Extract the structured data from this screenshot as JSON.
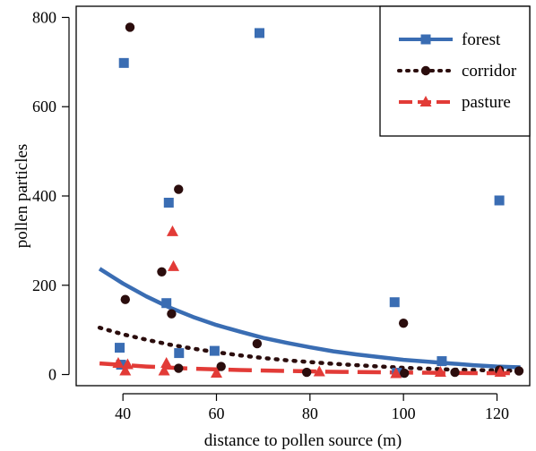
{
  "chart_data": {
    "type": "scatter",
    "xlabel": "distance to pollen source (m)",
    "ylabel": "pollen particles",
    "xlim": [
      30,
      127
    ],
    "ylim": [
      -25,
      825
    ],
    "xticks": [
      40,
      60,
      80,
      100,
      120
    ],
    "yticks": [
      0,
      200,
      400,
      600,
      800
    ],
    "grid": false,
    "legend_position": "top-right",
    "series": [
      {
        "name": "forest",
        "color": "#3a6db3",
        "marker": "square",
        "line_style": "solid",
        "points": [
          {
            "x": 39.3,
            "y": 60
          },
          {
            "x": 39.6,
            "y": 22
          },
          {
            "x": 40.2,
            "y": 698
          },
          {
            "x": 49.3,
            "y": 160
          },
          {
            "x": 49.8,
            "y": 385
          },
          {
            "x": 52.0,
            "y": 48
          },
          {
            "x": 59.6,
            "y": 53
          },
          {
            "x": 69.2,
            "y": 765
          },
          {
            "x": 98.1,
            "y": 162
          },
          {
            "x": 98.6,
            "y": 4
          },
          {
            "x": 108.2,
            "y": 30
          },
          {
            "x": 120.5,
            "y": 390
          }
        ],
        "fit": {
          "x": [
            35,
            40,
            45,
            50,
            55,
            60,
            65,
            70,
            75,
            80,
            85,
            90,
            95,
            100,
            105,
            110,
            115,
            120,
            125
          ],
          "y": [
            237,
            204,
            175,
            150,
            129,
            111,
            96,
            82,
            71,
            61,
            52,
            45,
            39,
            33,
            29,
            25,
            21,
            18,
            16
          ]
        }
      },
      {
        "name": "corridor",
        "color": "#2b0d0d",
        "marker": "circle",
        "line_style": "dotted",
        "points": [
          {
            "x": 40.5,
            "y": 168
          },
          {
            "x": 41.5,
            "y": 778
          },
          {
            "x": 48.3,
            "y": 230
          },
          {
            "x": 50.4,
            "y": 136
          },
          {
            "x": 51.9,
            "y": 415
          },
          {
            "x": 51.9,
            "y": 14
          },
          {
            "x": 61.0,
            "y": 18
          },
          {
            "x": 68.7,
            "y": 69
          },
          {
            "x": 79.3,
            "y": 5
          },
          {
            "x": 100.0,
            "y": 115
          },
          {
            "x": 100.2,
            "y": 3
          },
          {
            "x": 111.0,
            "y": 5
          },
          {
            "x": 120.5,
            "y": 10
          },
          {
            "x": 124.7,
            "y": 8
          }
        ],
        "fit": {
          "x": [
            35,
            40,
            45,
            50,
            55,
            60,
            65,
            70,
            75,
            80,
            85,
            90,
            95,
            100,
            105,
            110,
            115,
            120,
            125
          ],
          "y": [
            105,
            90,
            78,
            67,
            58,
            50,
            43,
            37,
            32,
            28,
            24,
            21,
            18,
            15,
            13,
            11,
            10,
            9,
            8
          ]
        }
      },
      {
        "name": "pasture",
        "color": "#e23b37",
        "marker": "triangle",
        "line_style": "dashed",
        "points": [
          {
            "x": 39.0,
            "y": 25
          },
          {
            "x": 40.5,
            "y": 8
          },
          {
            "x": 41.0,
            "y": 22
          },
          {
            "x": 48.8,
            "y": 8
          },
          {
            "x": 49.3,
            "y": 25
          },
          {
            "x": 50.6,
            "y": 320
          },
          {
            "x": 50.8,
            "y": 242
          },
          {
            "x": 60.0,
            "y": 3
          },
          {
            "x": 82.0,
            "y": 6
          },
          {
            "x": 98.4,
            "y": 2
          },
          {
            "x": 107.9,
            "y": 5
          },
          {
            "x": 120.7,
            "y": 5
          }
        ],
        "fit": {
          "x": [
            35,
            45,
            55,
            65,
            75,
            85,
            95,
            105,
            115,
            125
          ],
          "y": [
            25,
            18,
            13,
            10,
            8,
            6,
            5,
            4,
            3,
            3
          ]
        }
      }
    ]
  }
}
